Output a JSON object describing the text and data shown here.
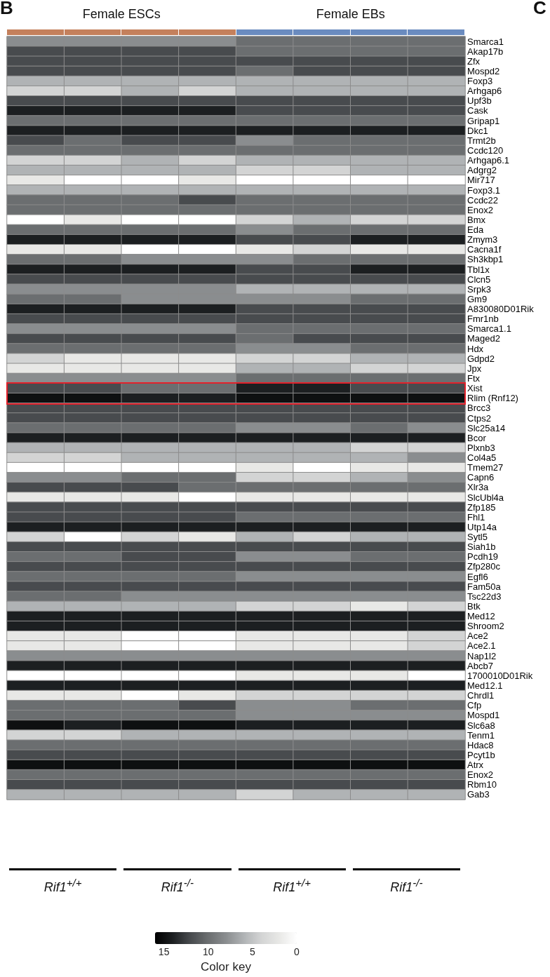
{
  "chart_data": {
    "type": "heatmap",
    "categories": [
      null,
      null,
      null,
      null,
      null,
      null,
      null,
      null
    ],
    "y_categories": [
      "Smarca1",
      "Akap17b",
      "Zfx",
      "Mospd2",
      "Foxp3",
      "Arhgap6",
      "Upf3b",
      "Cask",
      "Gripap1",
      "Dkc1",
      "Trmt2b",
      "Ccdc120",
      "Arhgap6.1",
      "Adgrg2",
      "Mir717",
      "Foxp3.1",
      "Ccdc22",
      "Enox2",
      "Bmx",
      "Eda",
      "Zmym3",
      "Cacna1f",
      "Sh3kbp1",
      "Tbl1x",
      "Clcn5",
      "Srpk3",
      "Gm9",
      "A830080D01Rik",
      "Fmr1nb",
      "Smarca1.1",
      "Maged2",
      "Hdx",
      "Gdpd2",
      "Jpx",
      "Ftx",
      "Xist",
      "Rlim (Rnf12)",
      "Brcc3",
      "Ctps2",
      "Slc25a14",
      "Bcor",
      "Plxnb3",
      "Col4a5",
      "Tmem27",
      "Capn6",
      "Xlr3a",
      "SlcUbl4a",
      "Zfp185",
      "Fhl1",
      "Utp14a",
      "Sytl5",
      "Siah1b",
      "Pcdh19",
      "Zfp280c",
      "Egfl6",
      "Fam50a",
      "Tsc22d3",
      "Btk",
      "Med12",
      "Shroom2",
      "Ace2",
      "Ace2.1",
      "Nap1l2",
      "Abcb7",
      "1700010D01Rik",
      "Med12.1",
      "Chrdl1",
      "Cfp",
      "Mospd1",
      "Slc6a8",
      "Tenm1",
      "Hdac8",
      "Pcyt1b",
      "Atrx",
      "Enox2",
      "Rbm10",
      "Gab3"
    ],
    "cells": [
      [
        8,
        8,
        8,
        8,
        10,
        10,
        10,
        10
      ],
      [
        12,
        12,
        12,
        12,
        10,
        10,
        10,
        10
      ],
      [
        12,
        12,
        12,
        12,
        12,
        12,
        12,
        12
      ],
      [
        12,
        12,
        12,
        12,
        10,
        12,
        12,
        12
      ],
      [
        6,
        6,
        6,
        6,
        6,
        6,
        6,
        6
      ],
      [
        4,
        4,
        6,
        4,
        6,
        6,
        6,
        6
      ],
      [
        12,
        12,
        12,
        12,
        12,
        12,
        12,
        12
      ],
      [
        14,
        14,
        14,
        14,
        12,
        12,
        12,
        12
      ],
      [
        10,
        10,
        10,
        10,
        10,
        10,
        10,
        10
      ],
      [
        14,
        14,
        14,
        14,
        14,
        14,
        14,
        14
      ],
      [
        12,
        10,
        12,
        12,
        8,
        10,
        10,
        10
      ],
      [
        10,
        10,
        10,
        10,
        10,
        10,
        10,
        10
      ],
      [
        4,
        4,
        6,
        4,
        6,
        6,
        6,
        6
      ],
      [
        6,
        6,
        6,
        6,
        4,
        4,
        6,
        6
      ],
      [
        2,
        0,
        0,
        2,
        0,
        0,
        0,
        0
      ],
      [
        6,
        6,
        6,
        6,
        6,
        6,
        6,
        6
      ],
      [
        10,
        10,
        10,
        12,
        10,
        10,
        10,
        10
      ],
      [
        10,
        10,
        10,
        10,
        10,
        10,
        10,
        10
      ],
      [
        0,
        2,
        0,
        0,
        4,
        6,
        4,
        4
      ],
      [
        10,
        10,
        10,
        10,
        8,
        10,
        10,
        10
      ],
      [
        14,
        14,
        14,
        14,
        12,
        12,
        14,
        14
      ],
      [
        2,
        2,
        0,
        0,
        2,
        4,
        2,
        2
      ],
      [
        10,
        10,
        8,
        8,
        8,
        10,
        10,
        10
      ],
      [
        14,
        14,
        14,
        14,
        12,
        12,
        14,
        14
      ],
      [
        12,
        12,
        12,
        12,
        12,
        12,
        12,
        12
      ],
      [
        8,
        8,
        8,
        8,
        6,
        6,
        6,
        6
      ],
      [
        10,
        10,
        8,
        8,
        8,
        8,
        10,
        10
      ],
      [
        14,
        14,
        14,
        14,
        12,
        12,
        12,
        12
      ],
      [
        12,
        12,
        12,
        12,
        12,
        12,
        12,
        12
      ],
      [
        8,
        8,
        8,
        8,
        10,
        10,
        10,
        10
      ],
      [
        12,
        12,
        12,
        12,
        10,
        12,
        12,
        12
      ],
      [
        10,
        10,
        10,
        10,
        8,
        8,
        10,
        10
      ],
      [
        4,
        2,
        2,
        2,
        4,
        4,
        6,
        6
      ],
      [
        2,
        2,
        2,
        2,
        6,
        6,
        4,
        4
      ],
      [
        8,
        8,
        8,
        8,
        10,
        10,
        10,
        10
      ],
      [
        12,
        12,
        10,
        10,
        14,
        14,
        12,
        12
      ],
      [
        15,
        15,
        14,
        14,
        15,
        15,
        15,
        15
      ],
      [
        12,
        12,
        12,
        12,
        12,
        12,
        12,
        12
      ],
      [
        12,
        12,
        12,
        12,
        12,
        12,
        12,
        12
      ],
      [
        10,
        10,
        10,
        10,
        8,
        8,
        10,
        8
      ],
      [
        14,
        14,
        14,
        14,
        14,
        14,
        14,
        14
      ],
      [
        6,
        6,
        6,
        6,
        6,
        6,
        4,
        4
      ],
      [
        4,
        4,
        6,
        6,
        6,
        6,
        6,
        8
      ],
      [
        0,
        0,
        0,
        0,
        2,
        0,
        2,
        2
      ],
      [
        8,
        8,
        10,
        10,
        4,
        4,
        6,
        8
      ],
      [
        12,
        12,
        12,
        10,
        10,
        10,
        10,
        10
      ],
      [
        2,
        2,
        2,
        0,
        2,
        2,
        2,
        2
      ],
      [
        12,
        12,
        12,
        12,
        12,
        12,
        12,
        12
      ],
      [
        12,
        12,
        12,
        12,
        10,
        10,
        10,
        10
      ],
      [
        14,
        14,
        14,
        14,
        14,
        14,
        14,
        14
      ],
      [
        4,
        0,
        4,
        2,
        6,
        4,
        6,
        6
      ],
      [
        12,
        12,
        12,
        12,
        12,
        12,
        12,
        12
      ],
      [
        10,
        10,
        12,
        12,
        8,
        8,
        10,
        10
      ],
      [
        12,
        12,
        12,
        12,
        12,
        12,
        12,
        12
      ],
      [
        10,
        10,
        10,
        10,
        8,
        8,
        8,
        8
      ],
      [
        12,
        12,
        12,
        12,
        12,
        12,
        12,
        12
      ],
      [
        10,
        10,
        8,
        8,
        8,
        8,
        8,
        8
      ],
      [
        6,
        6,
        6,
        6,
        4,
        4,
        2,
        4
      ],
      [
        14,
        14,
        14,
        14,
        14,
        14,
        14,
        14
      ],
      [
        14,
        14,
        14,
        14,
        14,
        14,
        14,
        14
      ],
      [
        2,
        2,
        0,
        0,
        2,
        2,
        2,
        4
      ],
      [
        2,
        2,
        0,
        0,
        2,
        2,
        2,
        4
      ],
      [
        8,
        8,
        8,
        8,
        8,
        8,
        8,
        8
      ],
      [
        14,
        14,
        14,
        14,
        14,
        14,
        14,
        14
      ],
      [
        0,
        0,
        0,
        0,
        2,
        2,
        2,
        0
      ],
      [
        14,
        14,
        14,
        14,
        14,
        14,
        14,
        14
      ],
      [
        2,
        2,
        0,
        2,
        4,
        4,
        4,
        4
      ],
      [
        10,
        10,
        10,
        12,
        8,
        8,
        10,
        10
      ],
      [
        10,
        10,
        10,
        10,
        8,
        8,
        8,
        8
      ],
      [
        15,
        14,
        15,
        15,
        14,
        14,
        14,
        14
      ],
      [
        4,
        4,
        6,
        6,
        6,
        6,
        6,
        6
      ],
      [
        10,
        10,
        10,
        10,
        10,
        10,
        10,
        10
      ],
      [
        12,
        12,
        12,
        12,
        12,
        12,
        12,
        12
      ],
      [
        15,
        15,
        15,
        15,
        15,
        15,
        15,
        15
      ],
      [
        10,
        10,
        10,
        10,
        10,
        10,
        10,
        10
      ],
      [
        12,
        12,
        12,
        12,
        12,
        12,
        12,
        12
      ],
      [
        6,
        6,
        6,
        6,
        4,
        6,
        6,
        6
      ]
    ],
    "clim": [
      16,
      0
    ],
    "cticks": [
      15,
      10,
      5,
      0
    ],
    "clabel": "Color key",
    "annotations": [
      "B",
      "C",
      "Female ESCs",
      "Female EBs",
      "Rif1$^{+/+}$",
      "Rif1$^{-/-}$",
      "Rif1$^{+/+}$",
      "Rif1$^{-/-}$"
    ]
  }
}
